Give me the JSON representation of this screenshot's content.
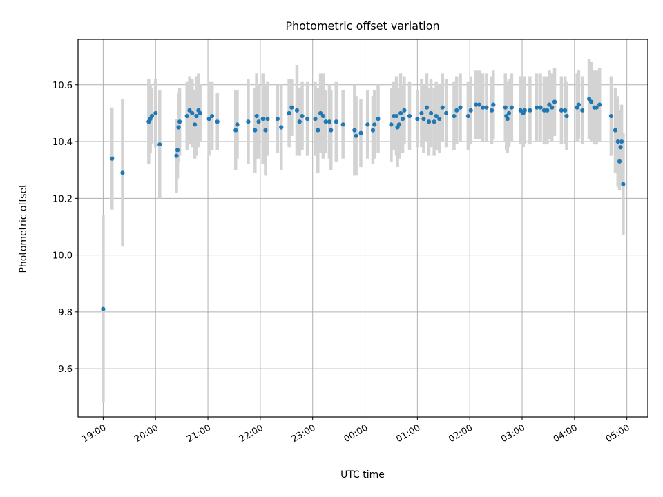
{
  "chart_data": {
    "type": "scatter",
    "title": "Photometric offset variation",
    "xlabel": "UTC time",
    "ylabel": "Photometric offset",
    "x_tick_labels": [
      "19:00",
      "20:00",
      "21:00",
      "22:00",
      "23:00",
      "00:00",
      "01:00",
      "02:00",
      "03:00",
      "04:00",
      "05:00"
    ],
    "y_tick_labels": [
      "9.6",
      "9.8",
      "10.0",
      "10.2",
      "10.4",
      "10.6"
    ],
    "y_ticks": [
      9.6,
      9.8,
      10.0,
      10.2,
      10.4,
      10.6
    ],
    "xlim_hours": [
      -0.48,
      10.4
    ],
    "ylim": [
      9.43,
      10.76
    ],
    "grid": true,
    "marker_color": "#1f77b4",
    "errorbar_color": "#d3d3d3",
    "points": [
      {
        "t": 0.0,
        "y": 9.81,
        "e": 0.33
      },
      {
        "t": 0.17,
        "y": 10.34,
        "e": 0.18
      },
      {
        "t": 0.37,
        "y": 10.29,
        "e": 0.26
      },
      {
        "t": 0.87,
        "y": 10.47,
        "e": 0.15
      },
      {
        "t": 0.9,
        "y": 10.48,
        "e": 0.12
      },
      {
        "t": 0.93,
        "y": 10.49,
        "e": 0.1
      },
      {
        "t": 1.0,
        "y": 10.5,
        "e": 0.12
      },
      {
        "t": 1.08,
        "y": 10.39,
        "e": 0.19
      },
      {
        "t": 1.4,
        "y": 10.35,
        "e": 0.13
      },
      {
        "t": 1.42,
        "y": 10.37,
        "e": 0.1
      },
      {
        "t": 1.44,
        "y": 10.45,
        "e": 0.12
      },
      {
        "t": 1.46,
        "y": 10.47,
        "e": 0.12
      },
      {
        "t": 1.6,
        "y": 10.49,
        "e": 0.12
      },
      {
        "t": 1.65,
        "y": 10.51,
        "e": 0.12
      },
      {
        "t": 1.7,
        "y": 10.5,
        "e": 0.12
      },
      {
        "t": 1.75,
        "y": 10.46,
        "e": 0.12
      },
      {
        "t": 1.78,
        "y": 10.49,
        "e": 0.14
      },
      {
        "t": 1.82,
        "y": 10.51,
        "e": 0.13
      },
      {
        "t": 1.85,
        "y": 10.5,
        "e": 0.1
      },
      {
        "t": 2.02,
        "y": 10.48,
        "e": 0.13
      },
      {
        "t": 2.08,
        "y": 10.49,
        "e": 0.12
      },
      {
        "t": 2.18,
        "y": 10.47,
        "e": 0.1
      },
      {
        "t": 2.53,
        "y": 10.44,
        "e": 0.14
      },
      {
        "t": 2.56,
        "y": 10.46,
        "e": 0.12
      },
      {
        "t": 2.77,
        "y": 10.47,
        "e": 0.15
      },
      {
        "t": 2.9,
        "y": 10.44,
        "e": 0.15
      },
      {
        "t": 2.93,
        "y": 10.49,
        "e": 0.15
      },
      {
        "t": 2.97,
        "y": 10.47,
        "e": 0.13
      },
      {
        "t": 3.05,
        "y": 10.48,
        "e": 0.16
      },
      {
        "t": 3.1,
        "y": 10.44,
        "e": 0.16
      },
      {
        "t": 3.14,
        "y": 10.48,
        "e": 0.13
      },
      {
        "t": 3.33,
        "y": 10.48,
        "e": 0.12
      },
      {
        "t": 3.4,
        "y": 10.45,
        "e": 0.15
      },
      {
        "t": 3.55,
        "y": 10.5,
        "e": 0.12
      },
      {
        "t": 3.6,
        "y": 10.52,
        "e": 0.1
      },
      {
        "t": 3.7,
        "y": 10.51,
        "e": 0.16
      },
      {
        "t": 3.75,
        "y": 10.47,
        "e": 0.12
      },
      {
        "t": 3.8,
        "y": 10.49,
        "e": 0.12
      },
      {
        "t": 3.9,
        "y": 10.48,
        "e": 0.13
      },
      {
        "t": 4.05,
        "y": 10.48,
        "e": 0.13
      },
      {
        "t": 4.1,
        "y": 10.44,
        "e": 0.15
      },
      {
        "t": 4.15,
        "y": 10.5,
        "e": 0.14
      },
      {
        "t": 4.2,
        "y": 10.49,
        "e": 0.15
      },
      {
        "t": 4.25,
        "y": 10.47,
        "e": 0.11
      },
      {
        "t": 4.32,
        "y": 10.47,
        "e": 0.13
      },
      {
        "t": 4.35,
        "y": 10.44,
        "e": 0.14
      },
      {
        "t": 4.45,
        "y": 10.47,
        "e": 0.14
      },
      {
        "t": 4.58,
        "y": 10.46,
        "e": 0.12
      },
      {
        "t": 4.8,
        "y": 10.44,
        "e": 0.16
      },
      {
        "t": 4.83,
        "y": 10.42,
        "e": 0.14
      },
      {
        "t": 4.92,
        "y": 10.43,
        "e": 0.12
      },
      {
        "t": 5.05,
        "y": 10.46,
        "e": 0.12
      },
      {
        "t": 5.15,
        "y": 10.44,
        "e": 0.12
      },
      {
        "t": 5.18,
        "y": 10.46,
        "e": 0.12
      },
      {
        "t": 5.25,
        "y": 10.48,
        "e": 0.12
      },
      {
        "t": 5.5,
        "y": 10.46,
        "e": 0.13
      },
      {
        "t": 5.55,
        "y": 10.49,
        "e": 0.12
      },
      {
        "t": 5.6,
        "y": 10.49,
        "e": 0.14
      },
      {
        "t": 5.62,
        "y": 10.45,
        "e": 0.14
      },
      {
        "t": 5.65,
        "y": 10.46,
        "e": 0.12
      },
      {
        "t": 5.68,
        "y": 10.5,
        "e": 0.14
      },
      {
        "t": 5.72,
        "y": 10.48,
        "e": 0.12
      },
      {
        "t": 5.75,
        "y": 10.51,
        "e": 0.12
      },
      {
        "t": 5.85,
        "y": 10.49,
        "e": 0.12
      },
      {
        "t": 6.0,
        "y": 10.48,
        "e": 0.1
      },
      {
        "t": 6.08,
        "y": 10.5,
        "e": 0.12
      },
      {
        "t": 6.12,
        "y": 10.48,
        "e": 0.12
      },
      {
        "t": 6.18,
        "y": 10.52,
        "e": 0.12
      },
      {
        "t": 6.22,
        "y": 10.47,
        "e": 0.12
      },
      {
        "t": 6.26,
        "y": 10.5,
        "e": 0.12
      },
      {
        "t": 6.32,
        "y": 10.47,
        "e": 0.12
      },
      {
        "t": 6.36,
        "y": 10.49,
        "e": 0.12
      },
      {
        "t": 6.42,
        "y": 10.48,
        "e": 0.12
      },
      {
        "t": 6.48,
        "y": 10.52,
        "e": 0.12
      },
      {
        "t": 6.55,
        "y": 10.5,
        "e": 0.12
      },
      {
        "t": 6.7,
        "y": 10.49,
        "e": 0.12
      },
      {
        "t": 6.75,
        "y": 10.51,
        "e": 0.12
      },
      {
        "t": 6.82,
        "y": 10.52,
        "e": 0.12
      },
      {
        "t": 6.97,
        "y": 10.49,
        "e": 0.12
      },
      {
        "t": 7.02,
        "y": 10.51,
        "e": 0.12
      },
      {
        "t": 7.12,
        "y": 10.53,
        "e": 0.12
      },
      {
        "t": 7.18,
        "y": 10.53,
        "e": 0.12
      },
      {
        "t": 7.25,
        "y": 10.52,
        "e": 0.12
      },
      {
        "t": 7.32,
        "y": 10.52,
        "e": 0.12
      },
      {
        "t": 7.42,
        "y": 10.51,
        "e": 0.12
      },
      {
        "t": 7.45,
        "y": 10.53,
        "e": 0.12
      },
      {
        "t": 7.68,
        "y": 10.52,
        "e": 0.12
      },
      {
        "t": 7.7,
        "y": 10.49,
        "e": 0.12
      },
      {
        "t": 7.72,
        "y": 10.48,
        "e": 0.12
      },
      {
        "t": 7.75,
        "y": 10.5,
        "e": 0.12
      },
      {
        "t": 7.8,
        "y": 10.52,
        "e": 0.12
      },
      {
        "t": 7.97,
        "y": 10.51,
        "e": 0.12
      },
      {
        "t": 8.02,
        "y": 10.5,
        "e": 0.12
      },
      {
        "t": 8.05,
        "y": 10.51,
        "e": 0.12
      },
      {
        "t": 8.15,
        "y": 10.51,
        "e": 0.12
      },
      {
        "t": 8.28,
        "y": 10.52,
        "e": 0.12
      },
      {
        "t": 8.35,
        "y": 10.52,
        "e": 0.12
      },
      {
        "t": 8.42,
        "y": 10.51,
        "e": 0.12
      },
      {
        "t": 8.48,
        "y": 10.51,
        "e": 0.12
      },
      {
        "t": 8.52,
        "y": 10.53,
        "e": 0.12
      },
      {
        "t": 8.57,
        "y": 10.52,
        "e": 0.12
      },
      {
        "t": 8.62,
        "y": 10.54,
        "e": 0.12
      },
      {
        "t": 8.75,
        "y": 10.51,
        "e": 0.12
      },
      {
        "t": 8.82,
        "y": 10.51,
        "e": 0.12
      },
      {
        "t": 8.85,
        "y": 10.49,
        "e": 0.12
      },
      {
        "t": 9.05,
        "y": 10.52,
        "e": 0.12
      },
      {
        "t": 9.08,
        "y": 10.53,
        "e": 0.12
      },
      {
        "t": 9.15,
        "y": 10.51,
        "e": 0.12
      },
      {
        "t": 9.28,
        "y": 10.55,
        "e": 0.14
      },
      {
        "t": 9.32,
        "y": 10.54,
        "e": 0.14
      },
      {
        "t": 9.38,
        "y": 10.52,
        "e": 0.13
      },
      {
        "t": 9.42,
        "y": 10.52,
        "e": 0.13
      },
      {
        "t": 9.48,
        "y": 10.53,
        "e": 0.13
      },
      {
        "t": 9.7,
        "y": 10.49,
        "e": 0.14
      },
      {
        "t": 9.78,
        "y": 10.44,
        "e": 0.15
      },
      {
        "t": 9.83,
        "y": 10.4,
        "e": 0.16
      },
      {
        "t": 9.86,
        "y": 10.33,
        "e": 0.1
      },
      {
        "t": 9.88,
        "y": 10.38,
        "e": 0.13
      },
      {
        "t": 9.9,
        "y": 10.4,
        "e": 0.13
      },
      {
        "t": 9.93,
        "y": 10.25,
        "e": 0.18
      }
    ]
  }
}
